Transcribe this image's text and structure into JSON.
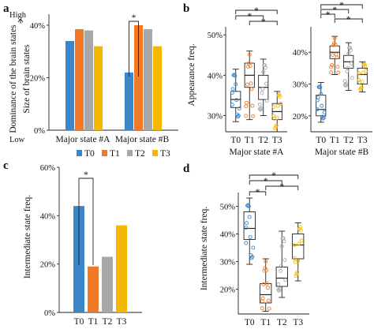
{
  "colors": {
    "T0": "#3a86c8",
    "T1": "#f07a28",
    "T2": "#a8a8a8",
    "T3": "#f5b800"
  },
  "legend": [
    "T0",
    "T1",
    "T2",
    "T3"
  ],
  "panels": {
    "a": "a",
    "b": "b",
    "c": "c",
    "d": "d"
  },
  "chart_data": [
    {
      "id": "a",
      "type": "bar",
      "ylabel_outer": "Dominance of the brain states",
      "ylabel_inner": "Size of brain states",
      "ylabel_high": "High",
      "ylabel_low": "Low",
      "yticks": [
        "0%",
        "20%",
        "40%"
      ],
      "ylim": [
        0,
        43
      ],
      "categories": [
        "Major state #A",
        "Major state #B"
      ],
      "series": [
        {
          "name": "T0",
          "values": [
            34,
            22
          ]
        },
        {
          "name": "T1",
          "values": [
            38.5,
            40
          ]
        },
        {
          "name": "T2",
          "values": [
            38,
            38.5
          ]
        },
        {
          "name": "T3",
          "values": [
            32,
            32
          ]
        }
      ],
      "significance": [
        {
          "group": 1,
          "from": "T0",
          "to": "T1",
          "label": "*"
        }
      ]
    },
    {
      "id": "b",
      "type": "box",
      "ylabel": "Appearance freq.",
      "subplots": [
        {
          "xlabel": "Major state #A",
          "yticks": [
            "30%",
            "40%",
            "50%"
          ],
          "ylim": [
            26,
            52
          ],
          "categories": [
            "T0",
            "T1",
            "T2",
            "T3"
          ],
          "median": [
            34,
            40,
            37,
            31
          ],
          "q1": [
            32,
            37,
            34,
            29
          ],
          "q3": [
            36,
            43,
            40,
            33
          ],
          "min": [
            28.5,
            29,
            30,
            26
          ],
          "max": [
            41.5,
            46,
            44,
            36
          ]
        },
        {
          "xlabel": "Major state #B",
          "yticks": [
            "20%",
            "30%",
            "40%"
          ],
          "ylim": [
            15,
            48
          ],
          "categories": [
            "T0",
            "T1",
            "T2",
            "T3"
          ],
          "median": [
            22,
            40,
            37,
            33
          ],
          "q1": [
            20,
            38,
            35,
            30
          ],
          "q3": [
            26.5,
            42,
            39,
            35
          ],
          "min": [
            18,
            33,
            28,
            27.5
          ],
          "max": [
            30.5,
            45,
            43,
            37
          ]
        }
      ],
      "significance_label": "*"
    },
    {
      "id": "c",
      "type": "bar",
      "ylabel": "Intermediate state freq.",
      "yticks": [
        "0%",
        "20%",
        "40%",
        "60%"
      ],
      "ylim": [
        0,
        60
      ],
      "categories": [
        "T0",
        "T1",
        "T2",
        "T3"
      ],
      "values": [
        44,
        19,
        23,
        36
      ],
      "significance": [
        {
          "from": "T0",
          "to": "T1",
          "label": "*"
        }
      ]
    },
    {
      "id": "d",
      "type": "box",
      "ylabel": "Intermediate state freq.",
      "yticks": [
        "20%",
        "30%",
        "40%",
        "50%"
      ],
      "ylim": [
        11,
        55
      ],
      "categories": [
        "T0",
        "T1",
        "T2",
        "T3"
      ],
      "median": [
        42,
        18,
        24,
        36
      ],
      "q1": [
        38,
        15,
        21,
        31
      ],
      "q3": [
        48,
        22,
        28,
        40
      ],
      "min": [
        29,
        12,
        17,
        23
      ],
      "max": [
        53,
        31,
        41,
        44
      ],
      "significance_label": "*"
    }
  ]
}
